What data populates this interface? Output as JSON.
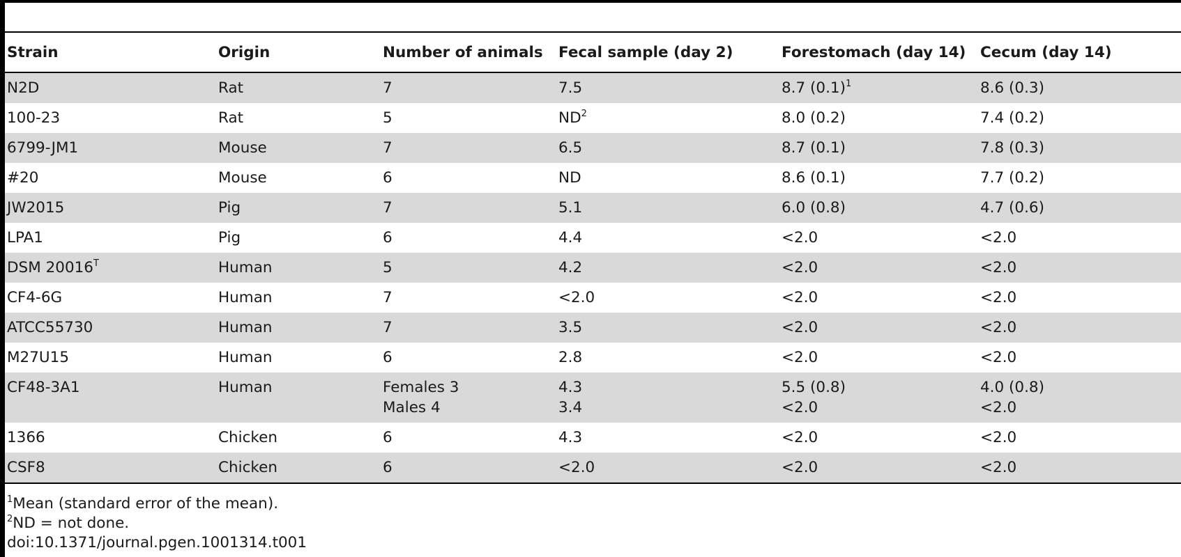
{
  "table": {
    "headers": [
      "Strain",
      "Origin",
      "Number of animals",
      "Fecal sample (day 2)",
      "Forestomach (day 14)",
      "Cecum (day 14)"
    ],
    "rows": [
      {
        "strain": "N2D",
        "strain_sup": "",
        "origin": "Rat",
        "animals": [
          "7"
        ],
        "fecal": [
          "7.5"
        ],
        "fecal_sup": "",
        "forestomach": [
          "8.7 (0.1)"
        ],
        "forestomach_sup": "1",
        "cecum": [
          "8.6 (0.3)"
        ]
      },
      {
        "strain": "100-23",
        "strain_sup": "",
        "origin": "Rat",
        "animals": [
          "5"
        ],
        "fecal": [
          "ND"
        ],
        "fecal_sup": "2",
        "forestomach": [
          "8.0 (0.2)"
        ],
        "forestomach_sup": "",
        "cecum": [
          "7.4 (0.2)"
        ]
      },
      {
        "strain": "6799-JM1",
        "strain_sup": "",
        "origin": "Mouse",
        "animals": [
          "7"
        ],
        "fecal": [
          "6.5"
        ],
        "fecal_sup": "",
        "forestomach": [
          "8.7 (0.1)"
        ],
        "forestomach_sup": "",
        "cecum": [
          "7.8 (0.3)"
        ]
      },
      {
        "strain": "#20",
        "strain_sup": "",
        "origin": "Mouse",
        "animals": [
          "6"
        ],
        "fecal": [
          "ND"
        ],
        "fecal_sup": "",
        "forestomach": [
          "8.6 (0.1)"
        ],
        "forestomach_sup": "",
        "cecum": [
          "7.7 (0.2)"
        ]
      },
      {
        "strain": "JW2015",
        "strain_sup": "",
        "origin": "Pig",
        "animals": [
          "7"
        ],
        "fecal": [
          "5.1"
        ],
        "fecal_sup": "",
        "forestomach": [
          "6.0 (0.8)"
        ],
        "forestomach_sup": "",
        "cecum": [
          "4.7 (0.6)"
        ]
      },
      {
        "strain": "LPA1",
        "strain_sup": "",
        "origin": "Pig",
        "animals": [
          "6"
        ],
        "fecal": [
          "4.4"
        ],
        "fecal_sup": "",
        "forestomach": [
          "<2.0"
        ],
        "forestomach_sup": "",
        "cecum": [
          "<2.0"
        ]
      },
      {
        "strain": "DSM 20016",
        "strain_sup": "T",
        "origin": "Human",
        "animals": [
          "5"
        ],
        "fecal": [
          "4.2"
        ],
        "fecal_sup": "",
        "forestomach": [
          "<2.0"
        ],
        "forestomach_sup": "",
        "cecum": [
          "<2.0"
        ]
      },
      {
        "strain": "CF4-6G",
        "strain_sup": "",
        "origin": "Human",
        "animals": [
          "7"
        ],
        "fecal": [
          "<2.0"
        ],
        "fecal_sup": "",
        "forestomach": [
          "<2.0"
        ],
        "forestomach_sup": "",
        "cecum": [
          "<2.0"
        ]
      },
      {
        "strain": "ATCC55730",
        "strain_sup": "",
        "origin": "Human",
        "animals": [
          "7"
        ],
        "fecal": [
          "3.5"
        ],
        "fecal_sup": "",
        "forestomach": [
          "<2.0"
        ],
        "forestomach_sup": "",
        "cecum": [
          "<2.0"
        ]
      },
      {
        "strain": "M27U15",
        "strain_sup": "",
        "origin": "Human",
        "animals": [
          "6"
        ],
        "fecal": [
          "2.8"
        ],
        "fecal_sup": "",
        "forestomach": [
          "<2.0"
        ],
        "forestomach_sup": "",
        "cecum": [
          "<2.0"
        ]
      },
      {
        "strain": "CF48-3A1",
        "strain_sup": "",
        "origin": "Human",
        "animals": [
          "Females 3",
          "Males 4"
        ],
        "fecal": [
          "4.3",
          "3.4"
        ],
        "fecal_sup": "",
        "forestomach": [
          "5.5 (0.8)",
          "<2.0"
        ],
        "forestomach_sup": "",
        "cecum": [
          "4.0 (0.8)",
          "<2.0"
        ]
      },
      {
        "strain": "1366",
        "strain_sup": "",
        "origin": "Chicken",
        "animals": [
          "6"
        ],
        "fecal": [
          "4.3"
        ],
        "fecal_sup": "",
        "forestomach": [
          "<2.0"
        ],
        "forestomach_sup": "",
        "cecum": [
          "<2.0"
        ]
      },
      {
        "strain": "CSF8",
        "strain_sup": "",
        "origin": "Chicken",
        "animals": [
          "6"
        ],
        "fecal": [
          "<2.0"
        ],
        "fecal_sup": "",
        "forestomach": [
          "<2.0"
        ],
        "forestomach_sup": "",
        "cecum": [
          "<2.0"
        ]
      }
    ]
  },
  "footnotes": [
    {
      "sup": "1",
      "text": "Mean (standard error of the mean)."
    },
    {
      "sup": "2",
      "text": "ND = not done."
    }
  ],
  "doi": "doi:10.1371/journal.pgen.1001314.t001",
  "colors": {
    "row_shade": "#d9d9d9",
    "rule": "#000000"
  }
}
